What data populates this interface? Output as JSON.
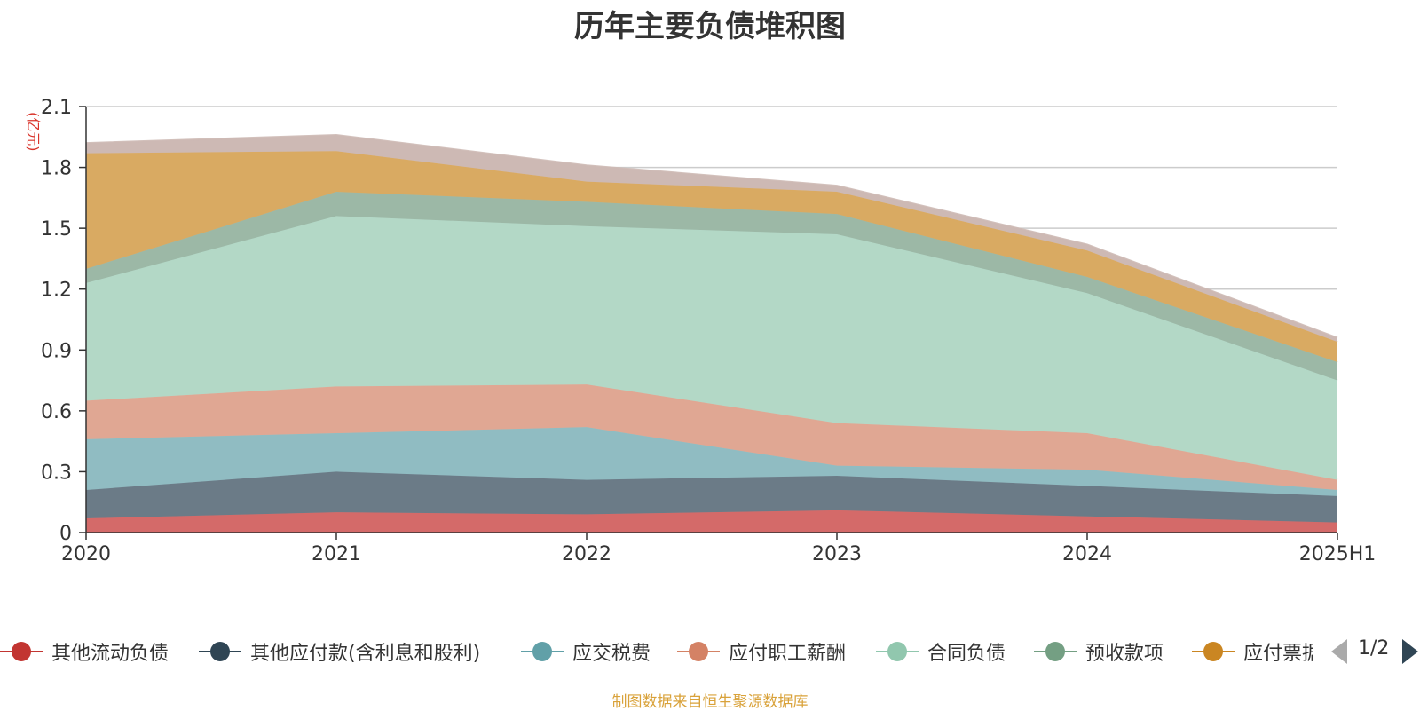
{
  "title": "历年主要负债堆积图",
  "source_note": "制图数据来自恒生聚源数据库",
  "legend_pager": "1/2",
  "chart_data": {
    "type": "area",
    "stacked": true,
    "title": "历年主要负债堆积图",
    "ylabel": "(亿元)",
    "ylim": [
      0,
      2.1
    ],
    "yticks": [
      "0",
      "0.3",
      "0.6",
      "0.9",
      "1.2",
      "1.5",
      "1.8",
      "2.1"
    ],
    "grid": true,
    "legend_position": "bottom",
    "categories": [
      "2020",
      "2021",
      "2022",
      "2023",
      "2024",
      "2025H1"
    ],
    "series": [
      {
        "name": "其他流动负债",
        "color": "#c23531",
        "fill": "#d46a69",
        "values": [
          0.07,
          0.1,
          0.09,
          0.11,
          0.08,
          0.05
        ]
      },
      {
        "name": "其他应付款(含利息和股利)",
        "color": "#2f4554",
        "fill": "#6b7b87",
        "values": [
          0.14,
          0.2,
          0.17,
          0.17,
          0.15,
          0.13
        ]
      },
      {
        "name": "应交税费",
        "color": "#61a0a8",
        "fill": "#90bcc2",
        "values": [
          0.25,
          0.19,
          0.26,
          0.05,
          0.08,
          0.03
        ]
      },
      {
        "name": "应付职工薪酬",
        "color": "#d48265",
        "fill": "#e0a793",
        "values": [
          0.19,
          0.23,
          0.21,
          0.21,
          0.18,
          0.05
        ]
      },
      {
        "name": "合同负债",
        "color": "#91c7ae",
        "fill": "#b3d8c6",
        "values": [
          0.58,
          0.84,
          0.78,
          0.93,
          0.69,
          0.49
        ]
      },
      {
        "name": "预收款项",
        "color": "#749f83",
        "fill": "#9cb8a6",
        "values": [
          0.07,
          0.12,
          0.12,
          0.1,
          0.08,
          0.09
        ]
      },
      {
        "name": "应付票据",
        "color": "#ca8622",
        "fill": "#d9aa62",
        "values": [
          0.57,
          0.2,
          0.1,
          0.11,
          0.13,
          0.1
        ]
      },
      {
        "name": "",
        "color": "#bda29a",
        "fill": "#cdb9b4",
        "values": [
          0.05,
          0.08,
          0.08,
          0.03,
          0.03,
          0.02
        ]
      }
    ]
  }
}
